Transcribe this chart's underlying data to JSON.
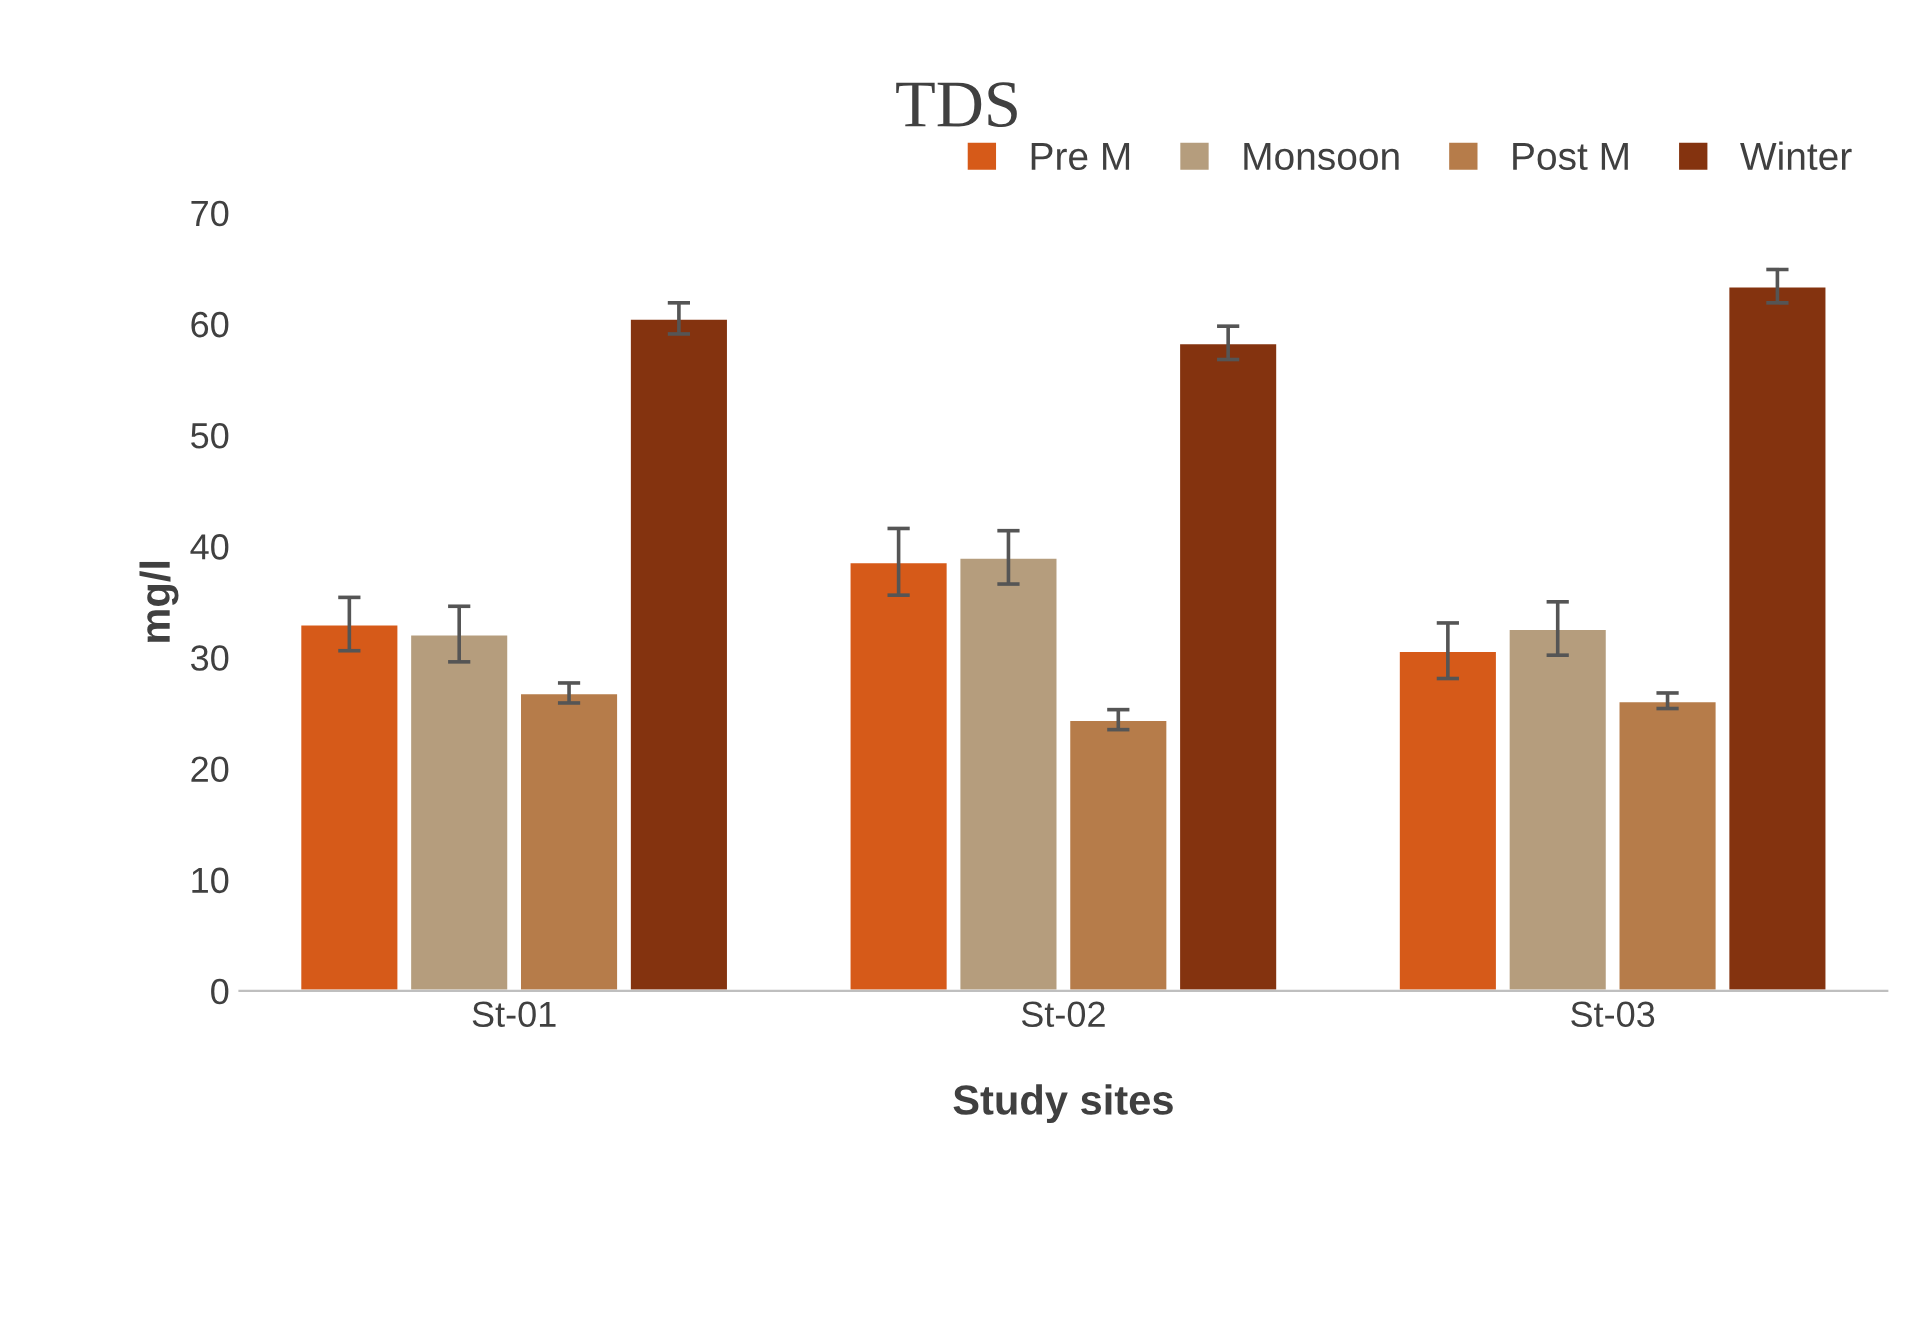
{
  "chart_data": {
    "type": "bar",
    "title": "TDS",
    "xlabel": "Study sites",
    "ylabel": "mg/l",
    "categories": [
      "St-01",
      "St-02",
      "St-03"
    ],
    "series": [
      {
        "name": "Pre M",
        "color": "#d65a19",
        "values": [
          33.0,
          38.6,
          30.6
        ],
        "errors": [
          2.4,
          3.0,
          2.5
        ]
      },
      {
        "name": "Monsoon",
        "color": "#b59d7d",
        "values": [
          32.1,
          39.0,
          32.6
        ],
        "errors": [
          2.5,
          2.4,
          2.4
        ]
      },
      {
        "name": "Post M",
        "color": "#b67c4a",
        "values": [
          26.8,
          24.4,
          26.1
        ],
        "errors": [
          0.9,
          0.9,
          0.7
        ]
      },
      {
        "name": "Winter",
        "color": "#84330f",
        "values": [
          60.5,
          58.3,
          63.4
        ],
        "errors": [
          1.4,
          1.5,
          1.5
        ]
      }
    ],
    "ylim": [
      0,
      70
    ],
    "yticks": [
      0,
      10,
      20,
      30,
      40,
      50,
      60,
      70
    ],
    "grid": false,
    "legend": "top right"
  }
}
